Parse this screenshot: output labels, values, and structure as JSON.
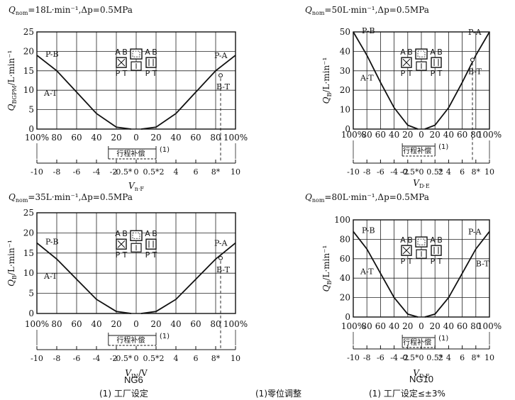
{
  "footer": {
    "panel1_name": "NG6",
    "panel3_name": "NG10",
    "note_left": "(1) 工厂设定",
    "note_mid": "(1)零位调整",
    "note_right": "(1) 工厂设定≤±3%"
  },
  "chart_data": [
    {
      "type": "line",
      "title": "Q_nom=18L·min⁻¹,Δp=0.5MPa",
      "title_sym": "Q",
      "title_sub": "nom",
      "title_rest": "=18L·min⁻¹,Δp=0.5MPa",
      "ylabel": "Q_BGPM/L·min⁻¹",
      "ylabel_sym": "Q",
      "ylabel_sub": "BGPM",
      "ylabel_rest": "/L·min⁻¹",
      "xlabel": "V_n·F",
      "xlabel_sym": "V",
      "xlabel_sub": "n·F",
      "ylim": [
        0,
        25
      ],
      "yticks": [
        "0",
        "5",
        "10",
        "15",
        "20",
        "25"
      ],
      "pct_ticks": [
        "100%",
        "80",
        "60",
        "40",
        "20",
        "0",
        "20",
        "40",
        "60",
        "80",
        "100%"
      ],
      "v_ticks": [
        "-10",
        "-8",
        "-6",
        "-4",
        "-2",
        "0",
        "2",
        "4",
        "6",
        "8*",
        "10"
      ],
      "v_special": [
        "-0.5*",
        "0.5*"
      ],
      "comp_label": "行程补偿",
      "comp_note": "(1)",
      "marker_x": 8.5,
      "series": [
        {
          "name": "P-B",
          "x": [
            -10,
            -8,
            -6,
            -4,
            -2,
            -0.5
          ],
          "y": [
            19,
            15,
            9.5,
            4,
            0.5,
            0
          ]
        },
        {
          "name": "P-A",
          "x": [
            0.5,
            2,
            4,
            6,
            8,
            10
          ],
          "y": [
            0,
            0.5,
            4,
            9.5,
            15,
            19
          ]
        },
        {
          "name": "A-T",
          "x": [
            -10
          ],
          "y": [
            10
          ]
        },
        {
          "name": "B-T",
          "x": [
            8.5
          ],
          "y": [
            12
          ]
        }
      ],
      "valve_labels": [
        "A",
        "B",
        "P",
        "T"
      ]
    },
    {
      "type": "line",
      "title": "Q_nom=50L·min⁻¹,Δp=0.5MPa",
      "title_sym": "Q",
      "title_sub": "nom",
      "title_rest": "=50L·min⁻¹,Δp=0.5MPa",
      "ylabel": "Q_B/L·min⁻¹",
      "ylabel_sym": "Q",
      "ylabel_sub": "B",
      "ylabel_rest": "/L·min⁻¹",
      "xlabel": "V_D·E",
      "xlabel_sym": "V",
      "xlabel_sub": "D·E",
      "ylim": [
        0,
        50
      ],
      "yticks": [
        "0",
        "10",
        "20",
        "30",
        "40",
        "50"
      ],
      "pct_ticks": [
        "100%",
        "80",
        "60",
        "40",
        "20",
        "0",
        "20",
        "40",
        "60",
        "80",
        "100%"
      ],
      "v_ticks": [
        "-10",
        "-8",
        "-6",
        "-4",
        "-2",
        "0",
        "2",
        "4",
        "6",
        "8*",
        "10"
      ],
      "v_special": [
        "-0.5*",
        "0.5*"
      ],
      "comp_label": "行程补偿",
      "comp_note": "(1)",
      "marker_x": 7.5,
      "series": [
        {
          "name": "P-B",
          "x": [
            -10,
            -8,
            -6,
            -4,
            -2,
            -0.5
          ],
          "y": [
            50,
            38,
            24,
            11,
            2,
            0
          ]
        },
        {
          "name": "P-A",
          "x": [
            0.5,
            2,
            4,
            6,
            8,
            10
          ],
          "y": [
            0,
            2,
            11,
            24,
            38,
            50
          ]
        },
        {
          "name": "A-T",
          "x": [
            -10
          ],
          "y": [
            28
          ]
        },
        {
          "name": "B-T",
          "x": [
            7.5
          ],
          "y": [
            32
          ]
        }
      ],
      "valve_labels": [
        "A",
        "B",
        "P",
        "T"
      ]
    },
    {
      "type": "line",
      "title": "Q_nom=35L·min⁻¹,Δp=0.5MPa",
      "title_sym": "Q",
      "title_sub": "nom",
      "title_rest": "=35L·min⁻¹,Δp=0.5MPa",
      "ylabel": "Q_B/L·min⁻¹",
      "ylabel_sym": "Q",
      "ylabel_sub": "B",
      "ylabel_rest": "/L·min⁻¹",
      "xlabel": "V_IN/V",
      "xlabel_sym": "V",
      "xlabel_sub": "IN",
      "xlabel_rest": "/V",
      "ylim": [
        0,
        25
      ],
      "yticks": [
        "0",
        "5",
        "10",
        "15",
        "20",
        "25"
      ],
      "pct_ticks": [
        "100%",
        "80",
        "60",
        "40",
        "20",
        "0",
        "20",
        "40",
        "60",
        "80",
        "100%"
      ],
      "v_ticks": [
        "-10",
        "-8",
        "-6",
        "-4",
        "-2",
        "0",
        "2",
        "4",
        "6",
        "8*",
        "10"
      ],
      "v_special": [
        "-0.5*",
        "0.5*"
      ],
      "comp_label": "行程补偿",
      "comp_note": "(1)",
      "marker_x": 8.5,
      "series": [
        {
          "name": "P-B",
          "x": [
            -10,
            -8,
            -6,
            -4,
            -2,
            -0.5
          ],
          "y": [
            17.5,
            13.5,
            8.5,
            3.5,
            0.5,
            0
          ]
        },
        {
          "name": "P-A",
          "x": [
            0.5,
            2,
            4,
            6,
            8,
            10
          ],
          "y": [
            0,
            0.5,
            3.5,
            8.5,
            13.5,
            17.5
          ]
        },
        {
          "name": "A-T",
          "x": [
            -10
          ],
          "y": [
            10
          ]
        },
        {
          "name": "B-T",
          "x": [
            8.5
          ],
          "y": [
            12
          ]
        }
      ],
      "valve_labels": [
        "A",
        "B",
        "P",
        "T"
      ]
    },
    {
      "type": "line",
      "title": "Q_nom=80L·min⁻¹,Δp=0.5MPa",
      "title_sym": "Q",
      "title_sub": "nom",
      "title_rest": "=80L·min⁻¹,Δp=0.5MPa",
      "ylabel": "Q_B/L·min⁻¹",
      "ylabel_sym": "Q",
      "ylabel_sub": "B",
      "ylabel_rest": "/L·min⁻¹",
      "xlabel": "V_D·E",
      "xlabel_sym": "V",
      "xlabel_sub": "D·E",
      "ylim": [
        0,
        100
      ],
      "yticks": [
        "0",
        "20",
        "40",
        "60",
        "80",
        "100"
      ],
      "pct_ticks": [
        "100%",
        "80",
        "60",
        "40",
        "20",
        "0",
        "20",
        "40",
        "60",
        "80",
        "100%"
      ],
      "v_ticks": [
        "-10",
        "-8",
        "-6",
        "-4",
        "-2",
        "0",
        "2",
        "4",
        "6",
        "8*",
        "10"
      ],
      "v_special": [
        "-0.5*",
        "0.5*"
      ],
      "comp_label": "行程补偿",
      "comp_note": "(1)",
      "marker_x": null,
      "series": [
        {
          "name": "P-B",
          "x": [
            -10,
            -8,
            -6,
            -4,
            -2,
            -0.5
          ],
          "y": [
            88,
            70,
            45,
            20,
            3,
            0
          ]
        },
        {
          "name": "P-A",
          "x": [
            0.5,
            2,
            4,
            6,
            8,
            10
          ],
          "y": [
            0,
            3,
            20,
            45,
            70,
            88
          ]
        },
        {
          "name": "A-T",
          "x": [
            -10
          ],
          "y": [
            50
          ]
        },
        {
          "name": "B-T",
          "x": [
            10
          ],
          "y": [
            55
          ]
        }
      ],
      "valve_labels": [
        "A",
        "B",
        "P",
        "T"
      ]
    }
  ]
}
